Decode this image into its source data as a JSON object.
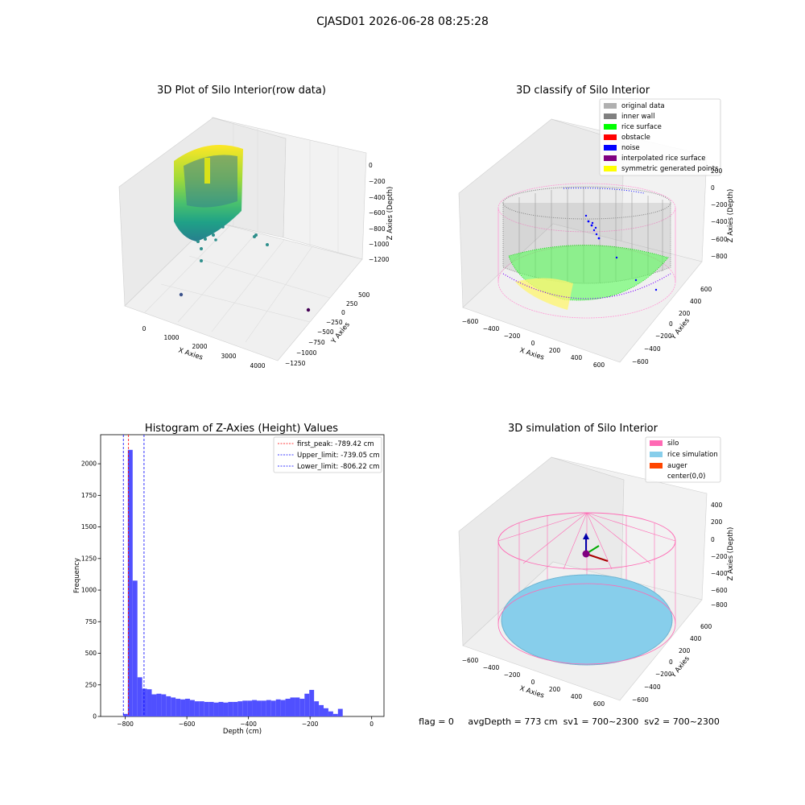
{
  "figure": {
    "suptitle": "CJASD01 2026-06-28 08:25:28",
    "footer": "flag = 0     avgDepth = 773 cm  sv1 = 700~2300  sv2 = 700~2300"
  },
  "panels": {
    "raw": {
      "title": "3D Plot of Silo Interior(row data)",
      "xlabel": "X Axies",
      "ylabel": "Y Axies",
      "zlabel": "Z Axies (Depth)",
      "xticks": [
        "0",
        "1000",
        "2000",
        "3000",
        "4000"
      ],
      "yticks": [
        "500",
        "250",
        "0",
        "−250",
        "−500",
        "−750",
        "−1000",
        "−1250"
      ],
      "zticks": [
        "0",
        "−200",
        "−400",
        "−600",
        "−800",
        "−1000",
        "−1200"
      ]
    },
    "classify": {
      "title": "3D classify of Silo Interior",
      "xlabel": "X Axies",
      "ylabel": "Y Axies",
      "zlabel": "Z Axies (Depth)",
      "xticks": [
        "−600",
        "−400",
        "−200",
        "0",
        "200",
        "400",
        "600"
      ],
      "yticks": [
        "600",
        "400",
        "200",
        "0",
        "−200",
        "−400",
        "−600"
      ],
      "zticks": [
        "200",
        "0",
        "−200",
        "−400",
        "−600",
        "−800"
      ],
      "legend": [
        {
          "label": "original data",
          "color": "#b0b0b0"
        },
        {
          "label": "inner wall",
          "color": "#808080"
        },
        {
          "label": "rice surface",
          "color": "#00ff00"
        },
        {
          "label": "obstacle",
          "color": "#ff0000"
        },
        {
          "label": "noise",
          "color": "#0000ff"
        },
        {
          "label": "interpolated rice surface",
          "color": "#800080"
        },
        {
          "label": "symmetric generated points",
          "color": "#ffff00"
        }
      ]
    },
    "simulation": {
      "title": "3D simulation of Silo Interior",
      "xlabel": "X Axies",
      "ylabel": "Y Axies",
      "zlabel": "Z Axies (Depth)",
      "xticks": [
        "−600",
        "−400",
        "−200",
        "0",
        "200",
        "400",
        "600"
      ],
      "yticks": [
        "600",
        "400",
        "200",
        "0",
        "−200",
        "−400",
        "−600"
      ],
      "zticks": [
        "400",
        "200",
        "0",
        "−200",
        "−400",
        "−600",
        "−800"
      ],
      "legend": [
        {
          "label": "silo",
          "color": "#ff69b4"
        },
        {
          "label": "rice simulation",
          "color": "#87ceeb"
        },
        {
          "label": "auger",
          "color": "#ff4500"
        },
        {
          "label": "center(0,0)",
          "color": ""
        }
      ]
    }
  },
  "chart_data": {
    "type": "bar",
    "title": "Histogram of Z-Axies (Height) Values",
    "xlabel": "Depth (cm)",
    "ylabel": "Frequency",
    "xlim": [
      -880,
      40
    ],
    "ylim": [
      0,
      2230
    ],
    "xticks": [
      -800,
      -600,
      -400,
      -200,
      0
    ],
    "xtick_labels": [
      "−800",
      "−600",
      "−400",
      "−200",
      "0"
    ],
    "yticks": [
      0,
      250,
      500,
      750,
      1000,
      1250,
      1500,
      1750,
      2000
    ],
    "bar_color": "#5050ff",
    "bin_start": -807,
    "bin_width": 15.5,
    "values": [
      20,
      2110,
      1075,
      310,
      220,
      215,
      175,
      180,
      175,
      160,
      150,
      140,
      135,
      140,
      130,
      120,
      120,
      115,
      115,
      110,
      115,
      110,
      115,
      115,
      120,
      125,
      125,
      130,
      125,
      125,
      130,
      125,
      135,
      130,
      140,
      150,
      150,
      140,
      180,
      210,
      120,
      90,
      65,
      40,
      20,
      60
    ],
    "vlines": [
      {
        "label": "first_peak: -789.42 cm",
        "x": -789.42,
        "color": "#ff0000"
      },
      {
        "label": "Upper_limit: -739.05 cm",
        "x": -739.05,
        "color": "#0000ff"
      },
      {
        "label": "Lower_limit: -806.22 cm",
        "x": -806.22,
        "color": "#0000ff"
      }
    ]
  }
}
